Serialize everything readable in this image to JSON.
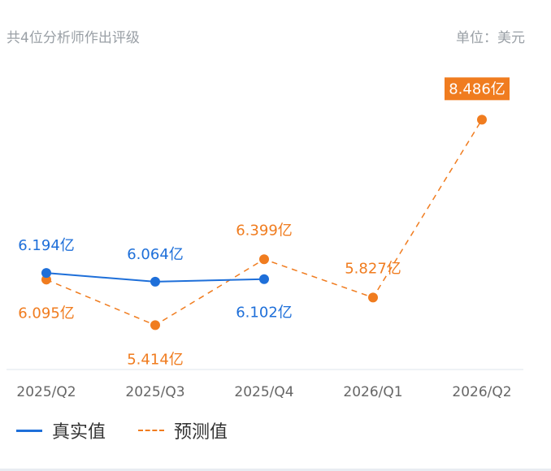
{
  "header": {
    "subtitle": "共4位分析师作出评级",
    "unit": "单位：美元"
  },
  "legend": {
    "actual": "真实值",
    "forecast": "预测值"
  },
  "colors": {
    "actual": "#1e6fd9",
    "forecast": "#f07c1f",
    "axis_text": "#666666",
    "header_text": "#9aa0a6"
  },
  "chart_data": {
    "type": "line",
    "categories": [
      "2025/Q2",
      "2025/Q3",
      "2025/Q4",
      "2026/Q1",
      "2026/Q2"
    ],
    "series": [
      {
        "name": "真实值",
        "style": "solid",
        "color": "#1e6fd9",
        "values": [
          6.194,
          6.064,
          6.102,
          null,
          null
        ],
        "labels": [
          "6.194亿",
          "6.064亿",
          "6.102亿",
          null,
          null
        ]
      },
      {
        "name": "预测值",
        "style": "dashed",
        "color": "#f07c1f",
        "values": [
          6.095,
          5.414,
          6.399,
          5.827,
          8.486
        ],
        "labels": [
          "6.095亿",
          "5.414亿",
          "6.399亿",
          "5.827亿",
          "8.486亿"
        ],
        "highlighted_label_index": 4
      }
    ],
    "ylim": [
      4.8,
      9.0
    ],
    "grid": false,
    "legend_position": "bottom-left"
  }
}
